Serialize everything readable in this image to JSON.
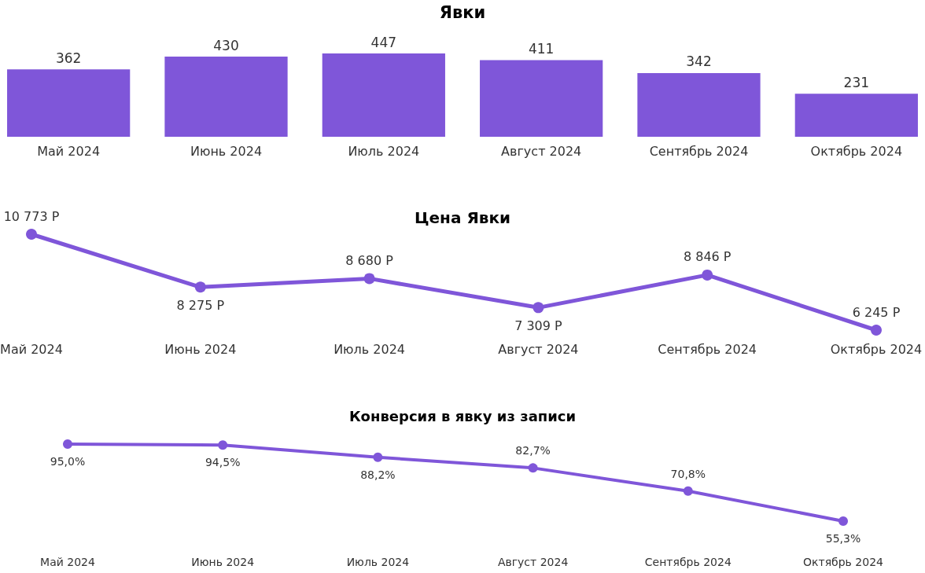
{
  "chart_data": [
    {
      "type": "bar",
      "title": "Явки",
      "categories": [
        "Май 2024",
        "Июнь 2024",
        "Июль 2024",
        "Август 2024",
        "Сентябрь 2024",
        "Октябрь 2024"
      ],
      "values": [
        362,
        430,
        447,
        411,
        342,
        231
      ],
      "color": "#7f56d9",
      "data_labels": true,
      "tick_labels": "x"
    },
    {
      "type": "line",
      "title": "Цена Явки",
      "categories": [
        "Май 2024",
        "Июнь 2024",
        "Июль 2024",
        "Август 2024",
        "Сентябрь 2024",
        "Октябрь 2024"
      ],
      "values": [
        10773,
        8275,
        8680,
        7309,
        8846,
        6245
      ],
      "value_labels": [
        "10 773 Р",
        "8 275 Р",
        "8 680 Р",
        "7 309 Р",
        "8 846 Р",
        "6 245 Р"
      ],
      "color": "#7f56d9",
      "marker": "circle",
      "line_style": "solid",
      "tick_labels": "x"
    },
    {
      "type": "line",
      "title": "Конверсия в явку из записи",
      "categories": [
        "Май 2024",
        "Июнь 2024",
        "Июль 2024",
        "Август 2024",
        "Сентябрь 2024",
        "Октябрь 2024"
      ],
      "values": [
        95.0,
        94.5,
        88.2,
        82.7,
        70.8,
        55.3
      ],
      "value_labels": [
        "95,0%",
        "94,5%",
        "88,2%",
        "82,7%",
        "70,8%",
        "55,3%"
      ],
      "color": "#7f56d9",
      "marker": "circle",
      "line_style": "solid",
      "tick_labels": "x"
    }
  ]
}
